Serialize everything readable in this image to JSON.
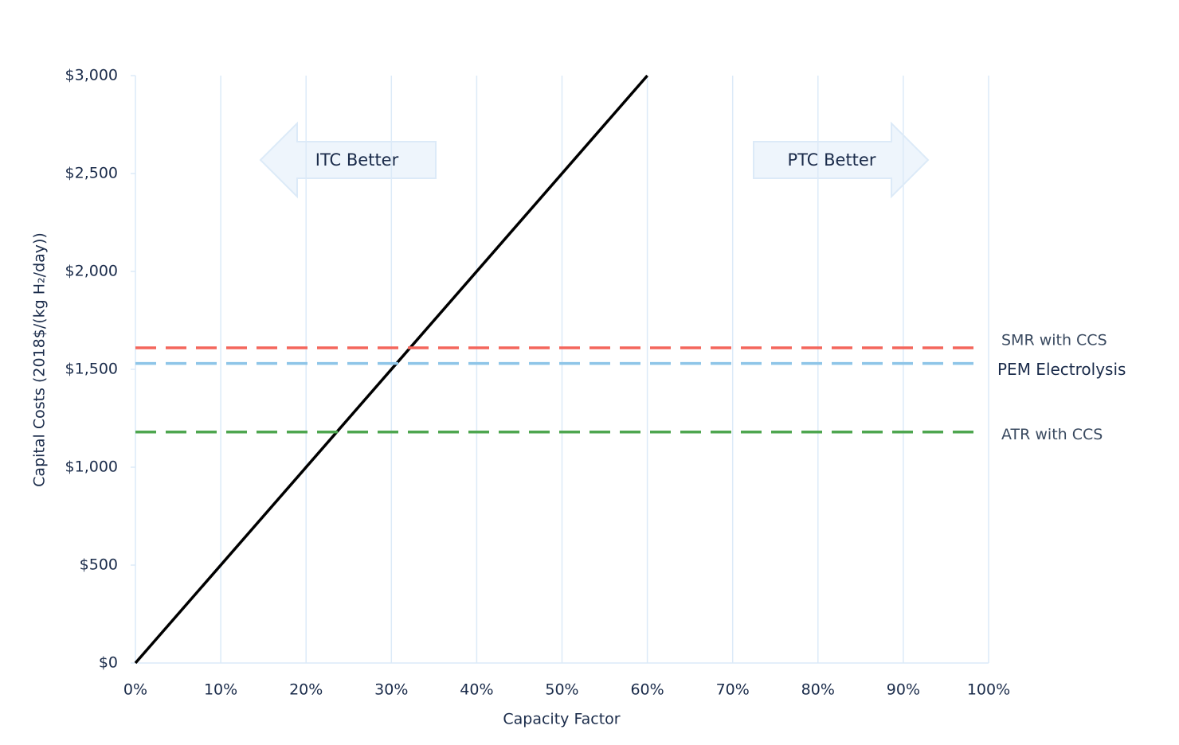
{
  "chart_data": {
    "type": "line",
    "x_label": "Capacity Factor",
    "y_label": "Capital Costs (2018$/(kg H₂/day))",
    "xlim": [
      0,
      100
    ],
    "ylim": [
      0,
      3000
    ],
    "xticks": [
      {
        "value": 0,
        "label": "0%"
      },
      {
        "value": 10,
        "label": "10%"
      },
      {
        "value": 20,
        "label": "20%"
      },
      {
        "value": 30,
        "label": "30%"
      },
      {
        "value": 40,
        "label": "40%"
      },
      {
        "value": 50,
        "label": "50%"
      },
      {
        "value": 60,
        "label": "60%"
      },
      {
        "value": 70,
        "label": "70%"
      },
      {
        "value": 80,
        "label": "80%"
      },
      {
        "value": 90,
        "label": "90%"
      },
      {
        "value": 100,
        "label": "100%"
      }
    ],
    "yticks": [
      {
        "value": 0,
        "label": "$0"
      },
      {
        "value": 500,
        "label": "$500"
      },
      {
        "value": 1000,
        "label": "$1,000"
      },
      {
        "value": 1500,
        "label": "$1,500"
      },
      {
        "value": 2000,
        "label": "$2,000"
      },
      {
        "value": 2500,
        "label": "$2,500"
      },
      {
        "value": 3000,
        "label": "$3,000"
      }
    ],
    "grid": true,
    "series": [
      {
        "color": "#000000",
        "x": [
          0,
          60
        ],
        "values": [
          0,
          3000
        ]
      },
      {
        "name": "SMR with CCS",
        "color": "#f4665c",
        "dashed": true,
        "x": [
          0,
          99
        ],
        "values": [
          1610,
          1610
        ]
      },
      {
        "name": "PEM Electrolysis",
        "color": "#8ec5e8",
        "dashed": true,
        "x": [
          0,
          99
        ],
        "values": [
          1530,
          1530
        ]
      },
      {
        "name": "ATR with CCS",
        "color": "#4ea64f",
        "dashed": true,
        "x": [
          0,
          99
        ],
        "values": [
          1180,
          1180
        ]
      }
    ],
    "annotations": [
      "ITC Better",
      "PTC Better"
    ]
  }
}
